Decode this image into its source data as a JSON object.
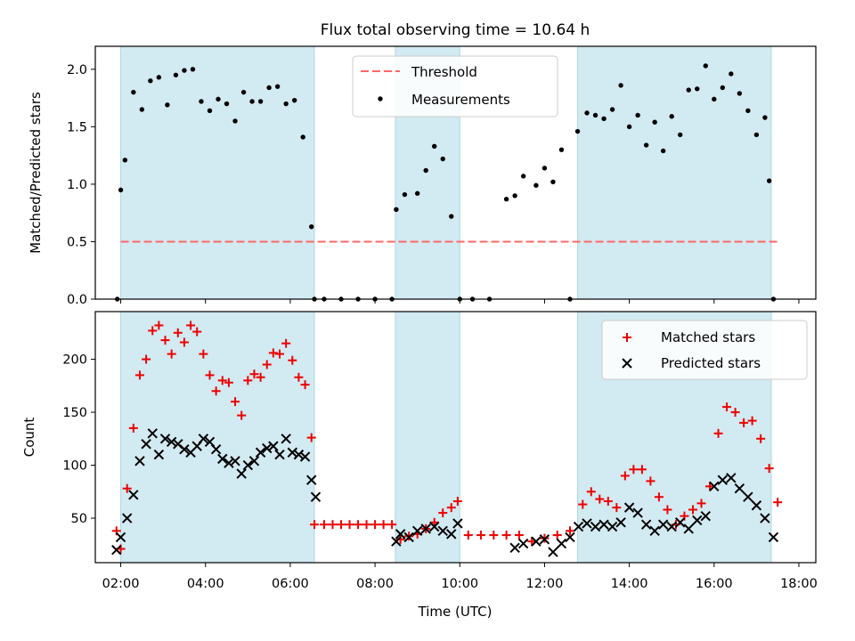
{
  "title": "Flux total observing time = 10.64 h",
  "xlabel": "Time (UTC)",
  "colors": {
    "band": "#add8e6",
    "threshold": "#ff6666",
    "matched": "#ee0000",
    "predicted": "#000000",
    "measurement": "#000000"
  },
  "chart_data": [
    {
      "type": "scatter",
      "panel": "top",
      "ylabel": "Matched/Predicted stars",
      "ylim": [
        0,
        2.2
      ],
      "yticks": [
        "0.0",
        "0.5",
        "1.0",
        "1.5",
        "2.0"
      ],
      "yticks_values": [
        0,
        0.5,
        1.0,
        1.5,
        2.0
      ],
      "xlim_hours": [
        1.4,
        18.4
      ],
      "xticks": [
        "02:00",
        "04:00",
        "06:00",
        "08:00",
        "10:00",
        "12:00",
        "14:00",
        "16:00",
        "18:00"
      ],
      "xticks_hours": [
        2,
        4,
        6,
        8,
        10,
        12,
        14,
        16,
        18
      ],
      "bands_hours": [
        [
          2.0,
          6.57
        ],
        [
          8.48,
          10.0
        ],
        [
          12.78,
          17.35
        ]
      ],
      "threshold": 0.5,
      "legend": {
        "placement": "top-center",
        "threshold_label": "Threshold",
        "measurements_label": "Measurements"
      },
      "series": [
        {
          "name": "Measurements",
          "x": [
            1.92,
            2.0,
            2.1,
            2.3,
            2.5,
            2.7,
            2.9,
            3.1,
            3.3,
            3.5,
            3.7,
            3.9,
            4.1,
            4.3,
            4.5,
            4.7,
            4.9,
            5.1,
            5.3,
            5.5,
            5.7,
            5.9,
            6.1,
            6.3,
            6.5,
            6.57,
            6.8,
            7.2,
            7.6,
            8.0,
            8.4,
            8.5,
            8.7,
            9.0,
            9.2,
            9.4,
            9.6,
            9.8,
            10.0,
            10.3,
            10.7,
            11.1,
            11.3,
            11.5,
            11.8,
            12.0,
            12.2,
            12.4,
            12.6,
            12.78,
            13.0,
            13.2,
            13.4,
            13.6,
            13.8,
            14.0,
            14.2,
            14.4,
            14.6,
            14.8,
            15.0,
            15.2,
            15.4,
            15.6,
            15.8,
            16.0,
            16.2,
            16.4,
            16.6,
            16.8,
            17.0,
            17.2,
            17.3,
            17.4
          ],
          "y": [
            0.0,
            0.95,
            1.21,
            1.8,
            1.65,
            1.9,
            1.93,
            1.69,
            1.95,
            1.99,
            2.0,
            1.72,
            1.64,
            1.74,
            1.7,
            1.55,
            1.8,
            1.72,
            1.72,
            1.84,
            1.85,
            1.7,
            1.73,
            1.41,
            0.63,
            0.0,
            0.0,
            0.0,
            0.0,
            0.0,
            0.0,
            0.78,
            0.91,
            0.92,
            1.12,
            1.33,
            1.22,
            0.72,
            0.0,
            0.0,
            0.0,
            0.87,
            0.9,
            1.07,
            0.99,
            1.14,
            1.02,
            1.3,
            0.0,
            1.46,
            1.62,
            1.6,
            1.57,
            1.65,
            1.86,
            1.5,
            1.6,
            1.34,
            1.54,
            1.29,
            1.59,
            1.43,
            1.82,
            1.83,
            2.03,
            1.74,
            1.84,
            1.96,
            1.79,
            1.64,
            1.43,
            1.58,
            1.03,
            0.0
          ]
        }
      ]
    },
    {
      "type": "scatter",
      "panel": "bottom",
      "ylabel": "Count",
      "ylim": [
        8,
        245
      ],
      "yticks": [
        "50",
        "100",
        "150",
        "200"
      ],
      "yticks_values": [
        50,
        100,
        150,
        200
      ],
      "xlim_hours": [
        1.4,
        18.4
      ],
      "xticks": [
        "02:00",
        "04:00",
        "06:00",
        "08:00",
        "10:00",
        "12:00",
        "14:00",
        "16:00",
        "18:00"
      ],
      "xticks_hours": [
        2,
        4,
        6,
        8,
        10,
        12,
        14,
        16,
        18
      ],
      "bands_hours": [
        [
          2.0,
          6.57
        ],
        [
          8.48,
          10.0
        ],
        [
          12.78,
          17.35
        ]
      ],
      "legend": {
        "placement": "top-right",
        "matched_label": "Matched stars",
        "predicted_label": "Predicted stars"
      },
      "series": [
        {
          "name": "Matched stars",
          "x": [
            1.9,
            2.0,
            2.15,
            2.3,
            2.45,
            2.6,
            2.75,
            2.9,
            3.05,
            3.2,
            3.35,
            3.5,
            3.65,
            3.8,
            3.95,
            4.1,
            4.25,
            4.4,
            4.55,
            4.7,
            4.85,
            5.0,
            5.15,
            5.3,
            5.45,
            5.6,
            5.75,
            5.9,
            6.05,
            6.2,
            6.35,
            6.5,
            6.57,
            6.8,
            7.0,
            7.2,
            7.4,
            7.6,
            7.8,
            8.0,
            8.2,
            8.4,
            8.6,
            8.8,
            9.0,
            9.2,
            9.4,
            9.6,
            9.8,
            9.95,
            10.2,
            10.5,
            10.8,
            11.1,
            11.4,
            11.7,
            12.0,
            12.3,
            12.6,
            12.9,
            13.1,
            13.3,
            13.5,
            13.7,
            13.9,
            14.1,
            14.3,
            14.5,
            14.7,
            14.9,
            15.1,
            15.3,
            15.5,
            15.7,
            15.9,
            16.1,
            16.3,
            16.5,
            16.7,
            16.9,
            17.1,
            17.3,
            17.5
          ],
          "y": [
            38,
            21,
            78,
            135,
            185,
            200,
            227,
            232,
            218,
            205,
            225,
            216,
            232,
            226,
            205,
            185,
            170,
            180,
            178,
            160,
            147,
            180,
            186,
            183,
            195,
            206,
            205,
            215,
            199,
            183,
            176,
            126,
            44,
            44,
            44,
            44,
            44,
            44,
            44,
            44,
            44,
            44,
            30,
            33,
            35,
            40,
            46,
            55,
            60,
            66,
            34,
            34,
            34,
            34,
            34,
            28,
            31,
            34,
            38,
            63,
            75,
            68,
            66,
            60,
            90,
            96,
            96,
            85,
            70,
            58,
            44,
            52,
            58,
            64,
            80,
            130,
            155,
            150,
            140,
            142,
            125,
            97,
            65
          ]
        },
        {
          "name": "Predicted stars",
          "x": [
            1.9,
            2.0,
            2.15,
            2.3,
            2.45,
            2.6,
            2.75,
            2.9,
            3.05,
            3.2,
            3.35,
            3.5,
            3.65,
            3.8,
            3.95,
            4.1,
            4.25,
            4.4,
            4.55,
            4.7,
            4.85,
            5.0,
            5.15,
            5.3,
            5.45,
            5.6,
            5.75,
            5.9,
            6.05,
            6.2,
            6.35,
            6.5,
            6.6,
            8.5,
            8.6,
            8.8,
            9.0,
            9.2,
            9.4,
            9.6,
            9.8,
            9.95,
            11.3,
            11.5,
            11.8,
            12.0,
            12.2,
            12.4,
            12.6,
            12.8,
            13.0,
            13.2,
            13.4,
            13.6,
            13.8,
            14.0,
            14.2,
            14.4,
            14.6,
            14.8,
            15.0,
            15.2,
            15.4,
            15.6,
            15.8,
            16.0,
            16.2,
            16.4,
            16.6,
            16.8,
            17.0,
            17.2,
            17.4
          ],
          "y": [
            20,
            32,
            50,
            72,
            104,
            120,
            130,
            110,
            125,
            122,
            120,
            115,
            112,
            118,
            125,
            122,
            115,
            106,
            102,
            104,
            92,
            100,
            104,
            112,
            116,
            118,
            110,
            125,
            112,
            110,
            108,
            86,
            70,
            28,
            35,
            32,
            38,
            40,
            42,
            38,
            35,
            45,
            22,
            26,
            28,
            30,
            18,
            26,
            32,
            42,
            45,
            42,
            44,
            42,
            46,
            60,
            55,
            44,
            38,
            44,
            42,
            46,
            40,
            48,
            52,
            80,
            86,
            88,
            78,
            70,
            62,
            50,
            32
          ]
        }
      ]
    }
  ]
}
